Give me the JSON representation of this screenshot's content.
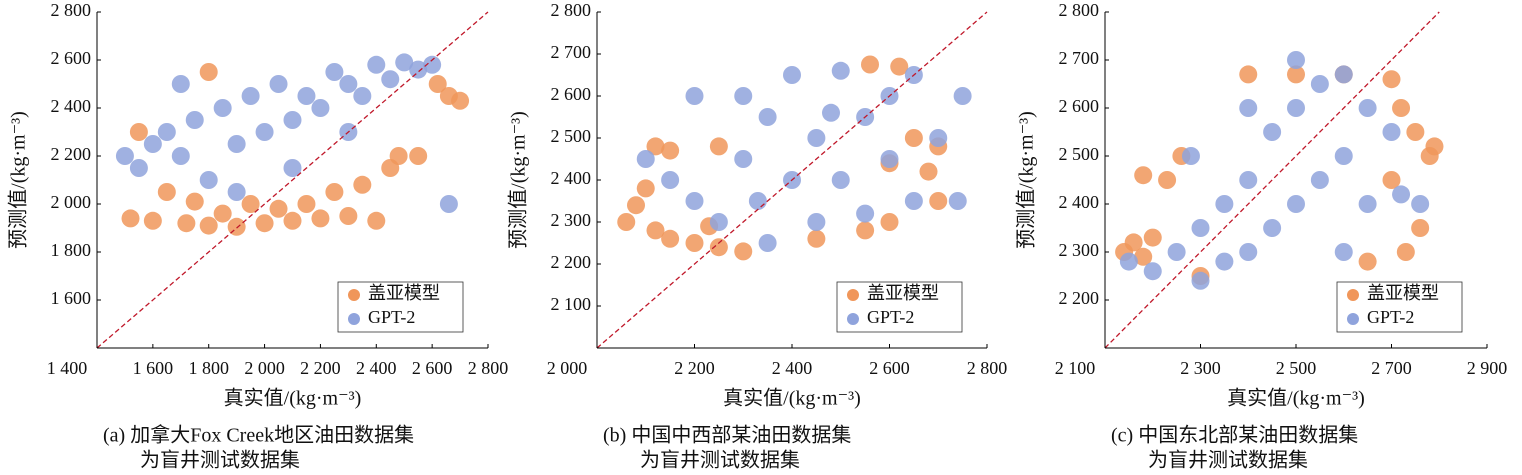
{
  "chart_data": [
    {
      "type": "scatter",
      "x_label": "真实值/(kg·m⁻³)",
      "y_label": "预测值/(kg·m⁻³)",
      "caption": [
        "(a) 加拿大Fox Creek地区油田数据集",
        "为盲井测试数据集"
      ],
      "legend": "lower right",
      "xlim": [
        1400,
        2800
      ],
      "ylim": [
        1400,
        2800
      ],
      "xticks": [
        {
          "value": 1400,
          "label": "1 400"
        },
        {
          "value": 1600,
          "label": "1 600"
        },
        {
          "value": 1800,
          "label": "1 800"
        },
        {
          "value": 2000,
          "label": "2 000"
        },
        {
          "value": 2200,
          "label": "2 200"
        },
        {
          "value": 2400,
          "label": "2 400"
        },
        {
          "value": 2600,
          "label": "2 600"
        },
        {
          "value": 2800,
          "label": "2 800"
        }
      ],
      "yticks": [
        {
          "value": 1600,
          "label": "1 600"
        },
        {
          "value": 1800,
          "label": "1 800"
        },
        {
          "value": 2000,
          "label": "2 000"
        },
        {
          "value": 2200,
          "label": "2 200"
        },
        {
          "value": 2400,
          "label": "2 400"
        },
        {
          "value": 2600,
          "label": "2 600"
        },
        {
          "value": 2800,
          "label": "2 800"
        }
      ],
      "series": [
        {
          "name": "盖亚模型",
          "color": "#f0965a",
          "x": [
            1720,
            1800,
            1900,
            2000,
            2100,
            2200,
            2300,
            2400,
            1600,
            1520,
            1850,
            1950,
            2050,
            2150,
            2250,
            2350,
            2450,
            2550,
            2620,
            2660,
            2700,
            1650,
            1750,
            1550,
            1800,
            2480
          ],
          "y": [
            1920,
            1910,
            1905,
            1920,
            1930,
            1940,
            1950,
            1930,
            1930,
            1940,
            1960,
            2000,
            1980,
            2000,
            2050,
            2080,
            2150,
            2200,
            2500,
            2450,
            2430,
            2050,
            2010,
            2300,
            2550,
            2200
          ]
        },
        {
          "name": "GPT-2",
          "color": "#8fa3dc",
          "x": [
            1500,
            1550,
            1600,
            1650,
            1700,
            1750,
            1800,
            1850,
            1900,
            1950,
            2000,
            2050,
            2100,
            2150,
            2200,
            2250,
            2300,
            2350,
            2400,
            2450,
            2500,
            2550,
            2600,
            1900,
            2100,
            2300,
            2660,
            1700
          ],
          "y": [
            2200,
            2150,
            2250,
            2300,
            2200,
            2350,
            2100,
            2400,
            2250,
            2450,
            2300,
            2500,
            2350,
            2450,
            2400,
            2550,
            2500,
            2450,
            2580,
            2520,
            2590,
            2560,
            2580,
            2050,
            2150,
            2300,
            2000,
            2500
          ]
        }
      ]
    },
    {
      "type": "scatter",
      "x_label": "真实值/(kg·m⁻³)",
      "y_label": "预测值/(kg·m⁻³)",
      "caption": [
        "(b) 中国中西部某油田数据集",
        "为盲井测试数据集"
      ],
      "legend": "lower right",
      "xlim": [
        2000,
        2800
      ],
      "ylim": [
        2000,
        2800
      ],
      "xticks": [
        {
          "value": 2000,
          "label": "2 000"
        },
        {
          "value": 2200,
          "label": "2 200"
        },
        {
          "value": 2400,
          "label": "2 400"
        },
        {
          "value": 2600,
          "label": "2 600"
        },
        {
          "value": 2800,
          "label": "2 800"
        }
      ],
      "yticks": [
        {
          "value": 2100,
          "label": "2 100"
        },
        {
          "value": 2200,
          "label": "2 200"
        },
        {
          "value": 2300,
          "label": "2 300"
        },
        {
          "value": 2400,
          "label": "2 400"
        },
        {
          "value": 2500,
          "label": "2 500"
        },
        {
          "value": 2600,
          "label": "2 600"
        },
        {
          "value": 2700,
          "label": "2 700"
        },
        {
          "value": 2800,
          "label": "2 800"
        }
      ],
      "series": [
        {
          "name": "盖亚模型",
          "color": "#f0965a",
          "x": [
            2060,
            2080,
            2100,
            2120,
            2150,
            2200,
            2250,
            2300,
            2450,
            2550,
            2600,
            2650,
            2700,
            2620,
            2560,
            2680,
            2700,
            2150,
            2250,
            2120,
            2230,
            2600
          ],
          "y": [
            2300,
            2340,
            2380,
            2280,
            2260,
            2250,
            2240,
            2230,
            2260,
            2280,
            2300,
            2500,
            2480,
            2670,
            2675,
            2420,
            2350,
            2470,
            2480,
            2480,
            2290,
            2440
          ]
        },
        {
          "name": "GPT-2",
          "color": "#8fa3dc",
          "x": [
            2100,
            2150,
            2200,
            2250,
            2300,
            2300,
            2350,
            2350,
            2400,
            2400,
            2450,
            2450,
            2500,
            2500,
            2550,
            2550,
            2600,
            2600,
            2650,
            2650,
            2700,
            2750,
            2740,
            2200,
            2330,
            2480
          ],
          "y": [
            2450,
            2400,
            2350,
            2300,
            2450,
            2600,
            2250,
            2550,
            2400,
            2650,
            2300,
            2500,
            2660,
            2400,
            2550,
            2320,
            2600,
            2450,
            2650,
            2350,
            2500,
            2600,
            2350,
            2600,
            2350,
            2560
          ]
        }
      ]
    },
    {
      "type": "scatter",
      "x_label": "真实值/(kg·m⁻³)",
      "y_label": "预测值/(kg·m⁻³)",
      "caption": [
        "(c) 中国东北部某油田数据集",
        "为盲井测试数据集"
      ],
      "legend": "lower right",
      "xlim": [
        2100,
        2900
      ],
      "ylim": [
        2100,
        2800
      ],
      "xticks": [
        {
          "value": 2100,
          "label": "2 100"
        },
        {
          "value": 2300,
          "label": "2 300"
        },
        {
          "value": 2500,
          "label": "2 500"
        },
        {
          "value": 2700,
          "label": "2 700"
        },
        {
          "value": 2900,
          "label": "2 900"
        }
      ],
      "yticks": [
        {
          "value": 2200,
          "label": "2 200"
        },
        {
          "value": 2300,
          "label": "2 300"
        },
        {
          "value": 2400,
          "label": "2 400"
        },
        {
          "value": 2500,
          "label": "2 500"
        },
        {
          "value": 2600,
          "label": "2 600"
        },
        {
          "value": 2700,
          "label": "2 700"
        },
        {
          "value": 2800,
          "label": "2 800"
        }
      ],
      "series": [
        {
          "name": "盖亚模型",
          "color": "#f0965a",
          "x": [
            2140,
            2160,
            2200,
            2180,
            2230,
            2260,
            2300,
            2400,
            2500,
            2600,
            2700,
            2720,
            2750,
            2780,
            2760,
            2730,
            2650,
            2180,
            2700,
            2790
          ],
          "y": [
            2300,
            2320,
            2330,
            2290,
            2450,
            2500,
            2250,
            2670,
            2670,
            2670,
            2660,
            2600,
            2550,
            2500,
            2350,
            2300,
            2280,
            2460,
            2450,
            2520
          ]
        },
        {
          "name": "GPT-2",
          "color": "#8fa3dc",
          "x": [
            2150,
            2200,
            2250,
            2300,
            2300,
            2350,
            2350,
            2400,
            2400,
            2450,
            2450,
            2500,
            2500,
            2500,
            2550,
            2550,
            2600,
            2600,
            2650,
            2650,
            2700,
            2720,
            2760,
            2400,
            2280,
            2600
          ],
          "y": [
            2280,
            2260,
            2300,
            2350,
            2240,
            2400,
            2280,
            2450,
            2300,
            2550,
            2350,
            2600,
            2400,
            2700,
            2650,
            2450,
            2670,
            2500,
            2600,
            2400,
            2550,
            2420,
            2400,
            2600,
            2500,
            2300
          ]
        }
      ]
    }
  ]
}
